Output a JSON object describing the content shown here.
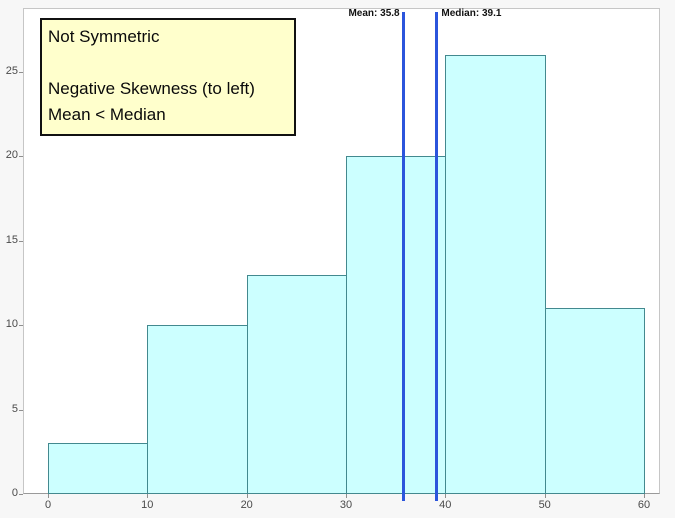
{
  "chart_data": {
    "type": "bar",
    "subtype": "histogram",
    "title": "",
    "xlabel": "",
    "ylabel": "",
    "bin_edges": [
      0,
      10,
      20,
      30,
      40,
      50,
      60
    ],
    "categories": [
      "0-10",
      "10-20",
      "20-30",
      "30-40",
      "40-50",
      "50-60"
    ],
    "values": [
      3,
      10,
      13,
      20,
      26,
      11
    ],
    "x_ticks": [
      0,
      10,
      20,
      30,
      40,
      50,
      60
    ],
    "y_ticks": [
      0,
      5,
      10,
      15,
      20,
      25
    ],
    "xlim": [
      -2.5,
      61.7
    ],
    "ylim": [
      0,
      28.8
    ],
    "grid": "off",
    "legend": "none",
    "mean": {
      "value": 35.8,
      "label": "Mean: 35.8"
    },
    "median": {
      "value": 39.1,
      "label": "Median: 39.1"
    },
    "annotation": {
      "lines": [
        "Not Symmetric",
        "",
        "Negative Skewness (to left)",
        "Mean < Median"
      ]
    },
    "colors": {
      "background": "#f7f7f7",
      "plot_background": "#ffffff",
      "bar_fill": "#ccffff",
      "bar_border": "#43898f",
      "reference_line": "#2b55dc",
      "annotation_background": "#ffffcc",
      "annotation_border": "#111111"
    }
  }
}
